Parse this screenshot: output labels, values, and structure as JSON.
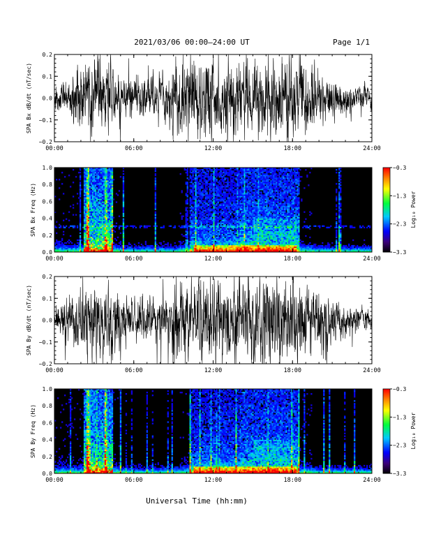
{
  "page": {
    "title": "2021/03/06  00:00–24:00 UT",
    "page_label": "Page 1/1",
    "x_axis_label": "Universal Time (hh:mm)"
  },
  "colors": {
    "background": "#ffffff",
    "trace": "#000000",
    "spectrogram_background": "#000000"
  },
  "chart_data": [
    {
      "type": "line",
      "id": "bx",
      "ylabel": "SPA Bx dB/dt (nT/sec)",
      "xlim": [
        0,
        24
      ],
      "ylim": [
        -0.2,
        0.2
      ],
      "x_ticks": [
        0,
        6,
        12,
        18,
        24
      ],
      "x_tick_labels": [
        "00:00",
        "06:00",
        "12:00",
        "18:00",
        "24:00"
      ],
      "y_ticks": [
        -0.2,
        -0.1,
        0.0,
        0.1,
        0.2
      ],
      "y_tick_labels": [
        "−0.2",
        "−0.1",
        "0.0",
        "0.1",
        "0.2"
      ],
      "envelope": {
        "hour": [
          0,
          1,
          2,
          3,
          4,
          5,
          6,
          7,
          8,
          9,
          10,
          11,
          12,
          13,
          14,
          15,
          16,
          17,
          18,
          19,
          20,
          21,
          22,
          23,
          24
        ],
        "amplitude": [
          0.06,
          0.08,
          0.2,
          0.2,
          0.2,
          0.12,
          0.09,
          0.1,
          0.12,
          0.16,
          0.2,
          0.2,
          0.2,
          0.2,
          0.2,
          0.2,
          0.2,
          0.2,
          0.2,
          0.17,
          0.13,
          0.1,
          0.08,
          0.07,
          0.06
        ]
      }
    },
    {
      "type": "heatmap",
      "id": "bx_spec",
      "ylabel": "SPA Bx Freq (Hz)",
      "xlim": [
        0,
        24
      ],
      "ylim": [
        0.0,
        1.0
      ],
      "x_ticks": [
        0,
        6,
        12,
        18,
        24
      ],
      "x_tick_labels": [
        "00:00",
        "06:00",
        "12:00",
        "18:00",
        "24:00"
      ],
      "y_ticks": [
        0.0,
        0.2,
        0.4,
        0.6,
        0.8,
        1.0
      ],
      "y_tick_labels": [
        "0.0",
        "0.2",
        "0.4",
        "0.6",
        "0.8",
        "1.0"
      ],
      "colorbar": {
        "label": "Log₁₀ Power",
        "range": [
          -3.3,
          -0.3
        ],
        "ticks": [
          -3.3,
          -2.3,
          -1.3,
          -0.3
        ],
        "tick_labels": [
          "−3.3",
          "−2.3",
          "−1.3",
          "−0.3"
        ]
      }
    },
    {
      "type": "line",
      "id": "by",
      "ylabel": "SPA By dB/dt (nT/sec)",
      "xlim": [
        0,
        24
      ],
      "ylim": [
        -0.2,
        0.2
      ],
      "x_ticks": [
        0,
        6,
        12,
        18,
        24
      ],
      "x_tick_labels": [
        "00:00",
        "06:00",
        "12:00",
        "18:00",
        "24:00"
      ],
      "y_ticks": [
        -0.2,
        -0.1,
        0.0,
        0.1,
        0.2
      ],
      "y_tick_labels": [
        "−0.2",
        "−0.1",
        "0.0",
        "0.1",
        "0.2"
      ],
      "envelope": {
        "hour": [
          0,
          1,
          2,
          3,
          4,
          5,
          6,
          7,
          8,
          9,
          10,
          11,
          12,
          13,
          14,
          15,
          16,
          17,
          18,
          19,
          20,
          21,
          22,
          23,
          24
        ],
        "amplitude": [
          0.05,
          0.1,
          0.2,
          0.2,
          0.2,
          0.15,
          0.1,
          0.1,
          0.12,
          0.17,
          0.2,
          0.2,
          0.2,
          0.2,
          0.2,
          0.2,
          0.2,
          0.2,
          0.2,
          0.17,
          0.14,
          0.12,
          0.08,
          0.06,
          0.05
        ]
      }
    },
    {
      "type": "heatmap",
      "id": "by_spec",
      "ylabel": "SPA By Freq (Hz)",
      "xlim": [
        0,
        24
      ],
      "ylim": [
        0.0,
        1.0
      ],
      "x_ticks": [
        0,
        6,
        12,
        18,
        24
      ],
      "x_tick_labels": [
        "00:00",
        "06:00",
        "12:00",
        "18:00",
        "24:00"
      ],
      "y_ticks": [
        0.0,
        0.2,
        0.4,
        0.6,
        0.8,
        1.0
      ],
      "y_tick_labels": [
        "0.0",
        "0.2",
        "0.4",
        "0.6",
        "0.8",
        "1.0"
      ],
      "colorbar": {
        "label": "Log₁₀ Power",
        "range": [
          -3.3,
          -0.3
        ],
        "ticks": [
          -3.3,
          -2.3,
          -1.3,
          -0.3
        ],
        "tick_labels": [
          "−3.3",
          "−2.3",
          "−1.3",
          "−0.3"
        ]
      }
    }
  ]
}
